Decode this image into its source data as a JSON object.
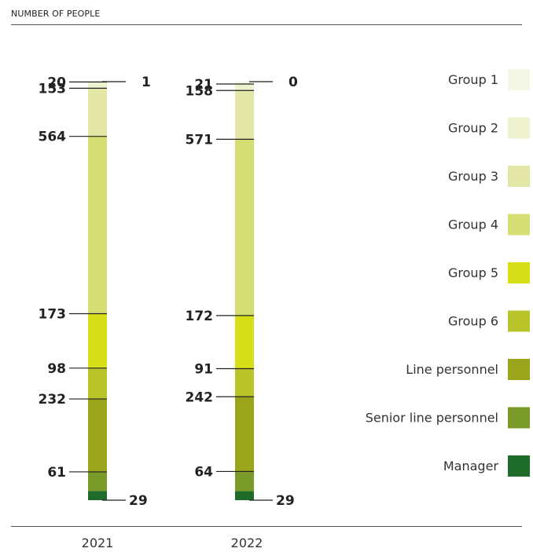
{
  "header": {
    "title": "NUMBER OF PEOPLE"
  },
  "chart_data": {
    "type": "bar",
    "stacked": true,
    "orientation": "vertical",
    "categories": [
      "2021",
      "2022"
    ],
    "series": [
      {
        "name": "Group 1",
        "color": "#f5f8e6",
        "values": [
          1,
          0
        ]
      },
      {
        "name": "Group 2",
        "color": "#eef2cf",
        "values": [
          20,
          21
        ]
      },
      {
        "name": "Group 3",
        "color": "#e2e7a8",
        "values": [
          153,
          158
        ]
      },
      {
        "name": "Group 4",
        "color": "#d4de72",
        "values": [
          564,
          571
        ]
      },
      {
        "name": "Group 5",
        "color": "#d7df18",
        "values": [
          173,
          172
        ]
      },
      {
        "name": "Group 6",
        "color": "#b9c42a",
        "values": [
          98,
          91
        ]
      },
      {
        "name": "Line personnel",
        "color": "#9aa51c",
        "values": [
          232,
          242
        ]
      },
      {
        "name": "Senior line personnel",
        "color": "#7a9a2a",
        "values": [
          61,
          64
        ]
      },
      {
        "name": "Manager",
        "color": "#1f6b2a",
        "values": [
          29,
          29
        ]
      }
    ],
    "legend": "right",
    "grid": false
  }
}
